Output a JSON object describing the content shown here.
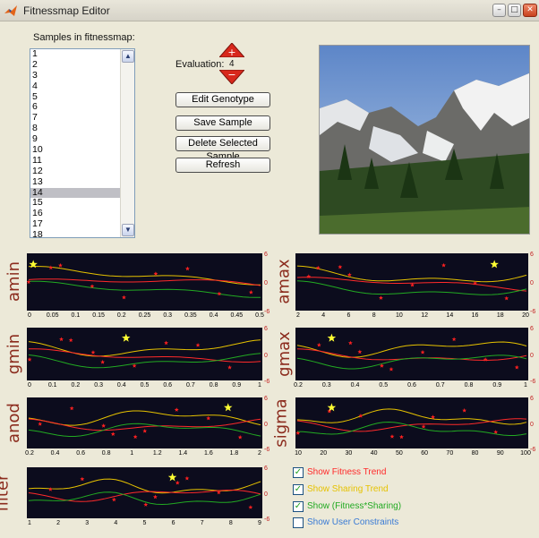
{
  "window": {
    "title": "Fitnessmap Editor",
    "min": "–",
    "max": "□",
    "close": "✕"
  },
  "samples": {
    "label": "Samples in fitnessmap:",
    "items": [
      "1",
      "2",
      "3",
      "4",
      "5",
      "6",
      "7",
      "8",
      "9",
      "10",
      "11",
      "12",
      "13",
      "14",
      "15",
      "16",
      "17",
      "18"
    ],
    "selected": "14"
  },
  "evaluation": {
    "label": "Evaluation:",
    "value": "4"
  },
  "buttons": {
    "edit_genotype": "Edit Genotype",
    "save_sample": "Save Sample",
    "delete_sample": "Delete Selected Sample",
    "refresh": "Refresh"
  },
  "legend": [
    {
      "label": "Show Fitness Trend",
      "checked": true,
      "color": "#ff2a2a"
    },
    {
      "label": "Show Sharing Trend",
      "checked": true,
      "color": "#e6c200"
    },
    {
      "label": "Show (Fitness*Sharing)",
      "checked": true,
      "color": "#22aa22"
    },
    {
      "label": "Show User Constraints",
      "checked": false,
      "color": "#3a7bd5"
    }
  ],
  "chart_data": [
    {
      "name": "amin",
      "type": "line",
      "xticks": [
        "0",
        "0.05",
        "0.1",
        "0.15",
        "0.2",
        "0.25",
        "0.3",
        "0.35",
        "0.4",
        "0.45",
        "0.5"
      ],
      "yticks": [
        "6",
        "0",
        "-6"
      ]
    },
    {
      "name": "amax",
      "type": "line",
      "xticks": [
        "2",
        "4",
        "6",
        "8",
        "10",
        "12",
        "14",
        "16",
        "18",
        "20"
      ],
      "yticks": [
        "6",
        "0",
        "-6"
      ]
    },
    {
      "name": "gmin",
      "type": "line",
      "xticks": [
        "0",
        "0.1",
        "0.2",
        "0.3",
        "0.4",
        "0.5",
        "0.6",
        "0.7",
        "0.8",
        "0.9",
        "1"
      ],
      "yticks": [
        "6",
        "0",
        "-6"
      ]
    },
    {
      "name": "gmax",
      "type": "line",
      "xticks": [
        "0.2",
        "0.3",
        "0.4",
        "0.5",
        "0.6",
        "0.7",
        "0.8",
        "0.9",
        "1"
      ],
      "yticks": [
        "6",
        "0",
        "-6"
      ]
    },
    {
      "name": "anod",
      "type": "line",
      "xticks": [
        "0.2",
        "0.4",
        "0.6",
        "0.8",
        "1",
        "1.2",
        "1.4",
        "1.6",
        "1.8",
        "2"
      ],
      "yticks": [
        "6",
        "0",
        "-6"
      ]
    },
    {
      "name": "sigma",
      "type": "line",
      "xticks": [
        "10",
        "20",
        "30",
        "40",
        "50",
        "60",
        "70",
        "80",
        "90",
        "100"
      ],
      "yticks": [
        "6",
        "0",
        "-6"
      ]
    },
    {
      "name": "filter",
      "type": "line",
      "xticks": [
        "1",
        "2",
        "3",
        "4",
        "5",
        "6",
        "7",
        "8",
        "9"
      ],
      "yticks": [
        "6",
        "0",
        "-6"
      ]
    }
  ],
  "colors": {
    "fitness": "#ff2a2a",
    "sharing": "#e6c200",
    "product": "#22aa22",
    "star": "#ffff33",
    "marker": "#ff2020",
    "plot_bg": "#0c0c1d"
  }
}
